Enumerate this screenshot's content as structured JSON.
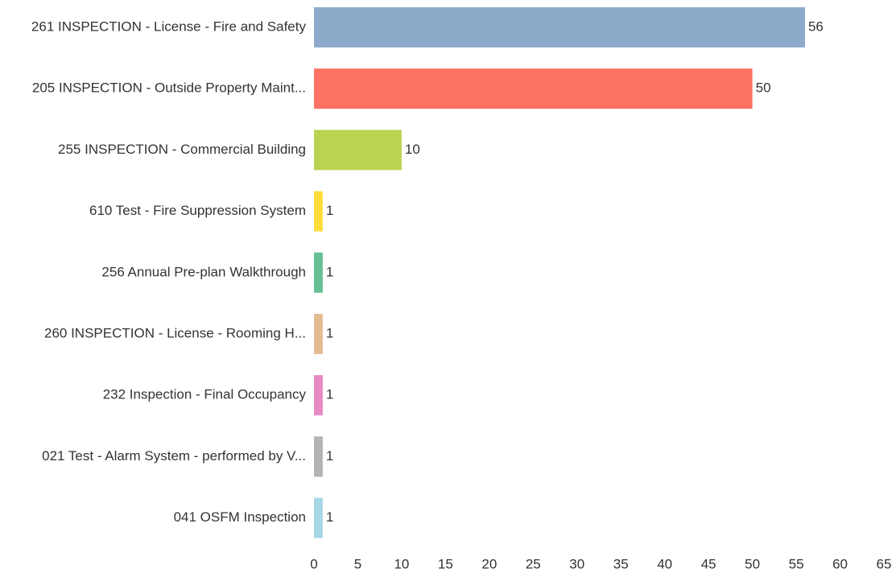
{
  "chart_data": {
    "type": "bar",
    "orientation": "horizontal",
    "categories": [
      "261 INSPECTION - License - Fire and Safety",
      "205 INSPECTION - Outside Property Maint...",
      "255 INSPECTION - Commercial Building",
      "610 Test - Fire Suppression System",
      "256 Annual Pre-plan Walkthrough",
      "260 INSPECTION - License - Rooming H...",
      "232 Inspection - Final Occupancy",
      "021 Test - Alarm System - performed by V...",
      "041 OSFM Inspection"
    ],
    "values": [
      56,
      50,
      10,
      1,
      1,
      1,
      1,
      1,
      1
    ],
    "colors": [
      "#8eaacb",
      "#fc7262",
      "#bad452",
      "#fedc3a",
      "#66c093",
      "#e5bb93",
      "#e78ac3",
      "#b3b3b3",
      "#a6d8e6"
    ],
    "xlim": [
      0,
      65
    ],
    "xticks": [
      0,
      5,
      10,
      15,
      20,
      25,
      30,
      35,
      40,
      45,
      50,
      55,
      60,
      65
    ],
    "grid": false
  }
}
